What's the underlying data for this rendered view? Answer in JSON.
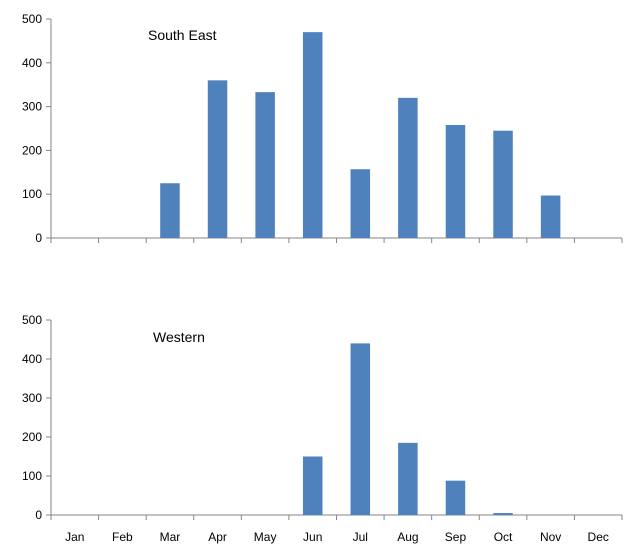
{
  "chart_data": [
    {
      "type": "bar",
      "title": "South East",
      "categories": [
        "Jan",
        "Feb",
        "Mar",
        "Apr",
        "May",
        "Jun",
        "Jul",
        "Aug",
        "Sep",
        "Oct",
        "Nov",
        "Dec"
      ],
      "values": [
        0,
        0,
        125,
        360,
        333,
        470,
        157,
        320,
        258,
        245,
        97,
        0
      ],
      "xlabel": "",
      "ylabel": "",
      "ylim": [
        0,
        500
      ],
      "yticks": [
        "0",
        "100",
        "200",
        "300",
        "400",
        "500"
      ],
      "show_xtick_labels": false,
      "grid": false,
      "bar_color": "#4F81BD"
    },
    {
      "type": "bar",
      "title": "Western",
      "categories": [
        "Jan",
        "Feb",
        "Mar",
        "Apr",
        "May",
        "Jun",
        "Jul",
        "Aug",
        "Sep",
        "Oct",
        "Nov",
        "Dec"
      ],
      "values": [
        0,
        0,
        0,
        0,
        0,
        150,
        440,
        185,
        88,
        5,
        0,
        0
      ],
      "xlabel": "",
      "ylabel": "",
      "ylim": [
        0,
        500
      ],
      "yticks": [
        "0",
        "100",
        "200",
        "300",
        "400",
        "500"
      ],
      "show_xtick_labels": true,
      "grid": false,
      "bar_color": "#4F81BD"
    }
  ]
}
